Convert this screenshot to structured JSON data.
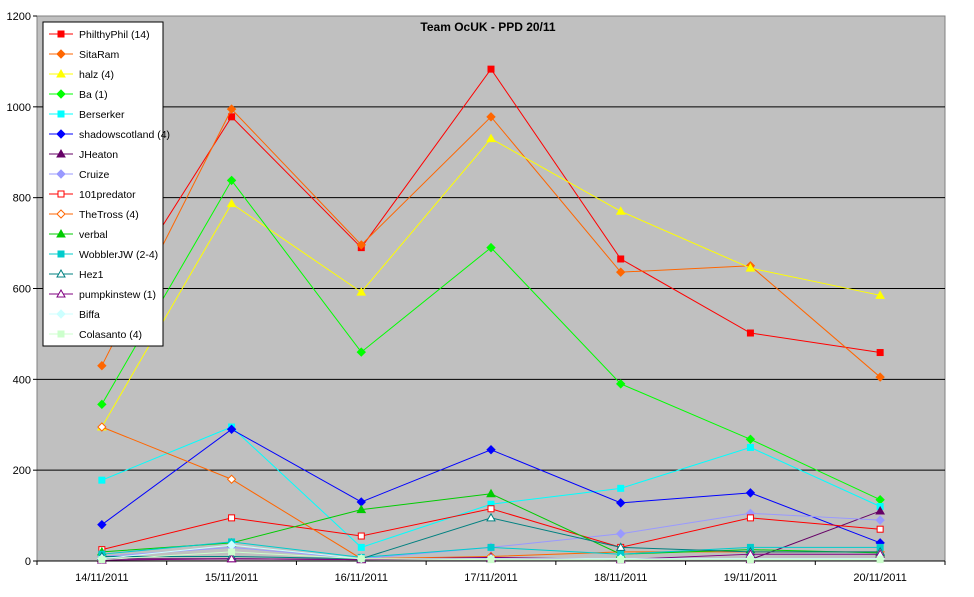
{
  "chart_data": {
    "type": "line",
    "title": "Team OcUK - PPD 20/11",
    "xlabel": "",
    "ylabel": "",
    "categories": [
      "14/11/2011",
      "15/11/2011",
      "16/11/2011",
      "17/11/2011",
      "18/11/2011",
      "19/11/2011",
      "20/11/2011"
    ],
    "ylim": [
      0,
      1200
    ],
    "yticks": [
      0,
      200,
      400,
      600,
      800,
      1000,
      1200
    ],
    "grid": true,
    "legend_position": "top-left",
    "plot_background": "#c0c0c0",
    "series": [
      {
        "name": "PhilthyPhil (14)",
        "color": "#ff0000",
        "marker": "square-filled",
        "values": [
          527,
          978,
          690,
          1083,
          665,
          502,
          459
        ]
      },
      {
        "name": "SitaRam",
        "color": "#ff6600",
        "marker": "diamond-filled",
        "values": [
          430,
          995,
          696,
          978,
          636,
          650,
          405
        ]
      },
      {
        "name": "halz (4)",
        "color": "#ffff00",
        "marker": "triangle-filled",
        "values": [
          295,
          787,
          592,
          930,
          770,
          645,
          585
        ]
      },
      {
        "name": "Ba (1)",
        "color": "#00ff00",
        "marker": "diamond-filled",
        "values": [
          345,
          838,
          460,
          690,
          390,
          268,
          135
        ]
      },
      {
        "name": "Berserker",
        "color": "#00ffff",
        "marker": "square-filled",
        "values": [
          178,
          295,
          30,
          125,
          160,
          250,
          120
        ]
      },
      {
        "name": "shadowscotland (4)",
        "color": "#0000ff",
        "marker": "diamond-filled",
        "values": [
          80,
          290,
          130,
          245,
          128,
          150,
          40
        ]
      },
      {
        "name": "JHeaton",
        "color": "#660066",
        "marker": "triangle-filled",
        "values": [
          5,
          5,
          3,
          5,
          3,
          3,
          110
        ]
      },
      {
        "name": "Cruize",
        "color": "#9999ff",
        "marker": "diamond-filled",
        "values": [
          10,
          30,
          5,
          30,
          60,
          105,
          90
        ]
      },
      {
        "name": "101predator",
        "color": "#ff0000",
        "marker": "square-open",
        "values": [
          25,
          95,
          55,
          115,
          30,
          95,
          70
        ]
      },
      {
        "name": "TheTross (4)",
        "color": "#ff6600",
        "marker": "diamond-open",
        "values": [
          295,
          180,
          5,
          10,
          20,
          20,
          20
        ]
      },
      {
        "name": "verbal",
        "color": "#00cc00",
        "marker": "triangle-filled",
        "values": [
          20,
          40,
          113,
          148,
          15,
          25,
          18
        ]
      },
      {
        "name": "WobblerJW (2-4)",
        "color": "#00cccc",
        "marker": "square-filled",
        "values": [
          15,
          42,
          8,
          30,
          15,
          30,
          30
        ]
      },
      {
        "name": "Hez1",
        "color": "#008080",
        "marker": "triangle-open",
        "values": [
          10,
          10,
          5,
          95,
          30,
          20,
          20
        ]
      },
      {
        "name": "pumpkinstew (1)",
        "color": "#800080",
        "marker": "triangle-open",
        "values": [
          2,
          5,
          3,
          8,
          3,
          15,
          15
        ]
      },
      {
        "name": "Biffa",
        "color": "#ccffff",
        "marker": "diamond-filled",
        "values": [
          5,
          35,
          5,
          5,
          5,
          5,
          5
        ]
      },
      {
        "name": "Colasanto (4)",
        "color": "#ccffcc",
        "marker": "square-filled",
        "values": [
          3,
          20,
          5,
          3,
          3,
          3,
          3
        ]
      }
    ]
  }
}
